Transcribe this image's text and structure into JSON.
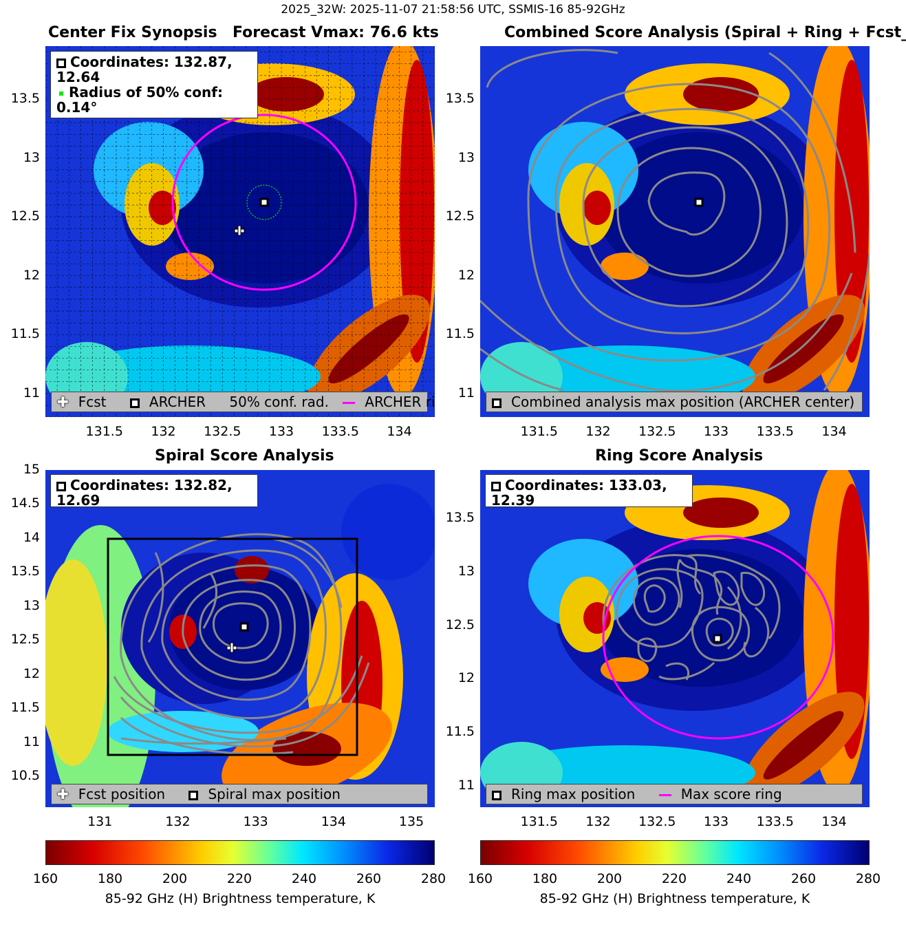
{
  "suptitle": "2025_32W: 2025-11-07 21:58:56 UTC, SSMIS-16 85-92GHz",
  "panels": {
    "tl": {
      "title_left": "Center Fix Synopsis",
      "title_right": "Forecast Vmax: 76.6 kts",
      "info_line1": "Coordinates: 132.87, 12.64",
      "info_line2": "Radius of 50% conf: 0.14°",
      "legend": [
        "Fcst",
        "ARCHER",
        "50% conf. rad.",
        "ARCHER ring"
      ],
      "xticks": [
        "131.5",
        "132",
        "132.5",
        "133",
        "133.5",
        "134"
      ],
      "yticks": [
        "13.5",
        "13",
        "12.5",
        "12",
        "11.5",
        "11"
      ]
    },
    "tr": {
      "title": "Combined Score Analysis (Spiral + Ring + Fcst_Pe",
      "legend": [
        "Combined analysis max position (ARCHER center)"
      ],
      "xticks": [
        "131.5",
        "132",
        "132.5",
        "133",
        "133.5",
        "134"
      ],
      "yticks": [
        "13.5",
        "13",
        "12.5",
        "12",
        "11.5",
        "11"
      ]
    },
    "bl": {
      "title": "Spiral Score Analysis",
      "info_line1": "Coordinates: 132.82, 12.69",
      "legend": [
        "Fcst position",
        "Spiral max position"
      ],
      "xticks": [
        "131",
        "132",
        "133",
        "134",
        "135"
      ],
      "yticks": [
        "15",
        "14.5",
        "14",
        "13.5",
        "13",
        "12.5",
        "12",
        "11.5",
        "11",
        "10.5"
      ]
    },
    "br": {
      "title": "Ring Score Analysis",
      "info_line1": "Coordinates: 133.03, 12.39",
      "legend": [
        "Ring max position",
        "Max score ring"
      ],
      "xticks": [
        "131.5",
        "132",
        "132.5",
        "133",
        "133.5",
        "134"
      ],
      "yticks": [
        "13.5",
        "13",
        "12.5",
        "12",
        "11.5",
        "11"
      ]
    }
  },
  "colorbar": {
    "ticks": [
      "160",
      "180",
      "200",
      "220",
      "240",
      "260",
      "280"
    ],
    "label": "85-92 GHz (H) Brightness temperature, K"
  },
  "chart_data": [
    {
      "type": "heatmap",
      "title": "Center Fix Synopsis",
      "subtitle": "Forecast Vmax: 76.6 kts",
      "xlim": [
        131.0,
        134.3
      ],
      "ylim": [
        10.8,
        13.95
      ],
      "points": {
        "archer": [
          132.87,
          12.64
        ],
        "fcst": [
          132.66,
          12.39
        ]
      },
      "confidence_radius_deg": 0.14,
      "archer_ring": {
        "center": [
          132.87,
          12.64
        ],
        "radius_deg": 0.75
      },
      "colorscale": {
        "min": 160,
        "max": 280,
        "units": "K"
      }
    },
    {
      "type": "heatmap",
      "title": "Combined Score Analysis (Spiral + Ring + Fcst_Pe",
      "xlim": [
        131.0,
        134.3
      ],
      "ylim": [
        10.8,
        13.95
      ],
      "points": {
        "combined_max": [
          132.87,
          12.64
        ]
      },
      "colorscale": {
        "min": 160,
        "max": 280,
        "units": "K"
      }
    },
    {
      "type": "heatmap",
      "title": "Spiral Score Analysis",
      "xlim": [
        130.3,
        135.3
      ],
      "ylim": [
        10.05,
        15.0
      ],
      "points": {
        "spiral_max": [
          132.82,
          12.69
        ],
        "fcst": [
          132.66,
          12.39
        ]
      },
      "search_box": {
        "x": [
          131.0,
          134.3
        ],
        "y": [
          10.8,
          14.0
        ]
      },
      "colorscale": {
        "min": 160,
        "max": 280,
        "units": "K"
      }
    },
    {
      "type": "heatmap",
      "title": "Ring Score Analysis",
      "xlim": [
        131.0,
        134.3
      ],
      "ylim": [
        10.8,
        13.95
      ],
      "points": {
        "ring_max": [
          133.03,
          12.39
        ]
      },
      "max_score_ring": {
        "center": [
          133.03,
          12.39
        ],
        "radius_deg": 0.95
      },
      "colorscale": {
        "min": 160,
        "max": 280,
        "units": "K"
      }
    }
  ]
}
